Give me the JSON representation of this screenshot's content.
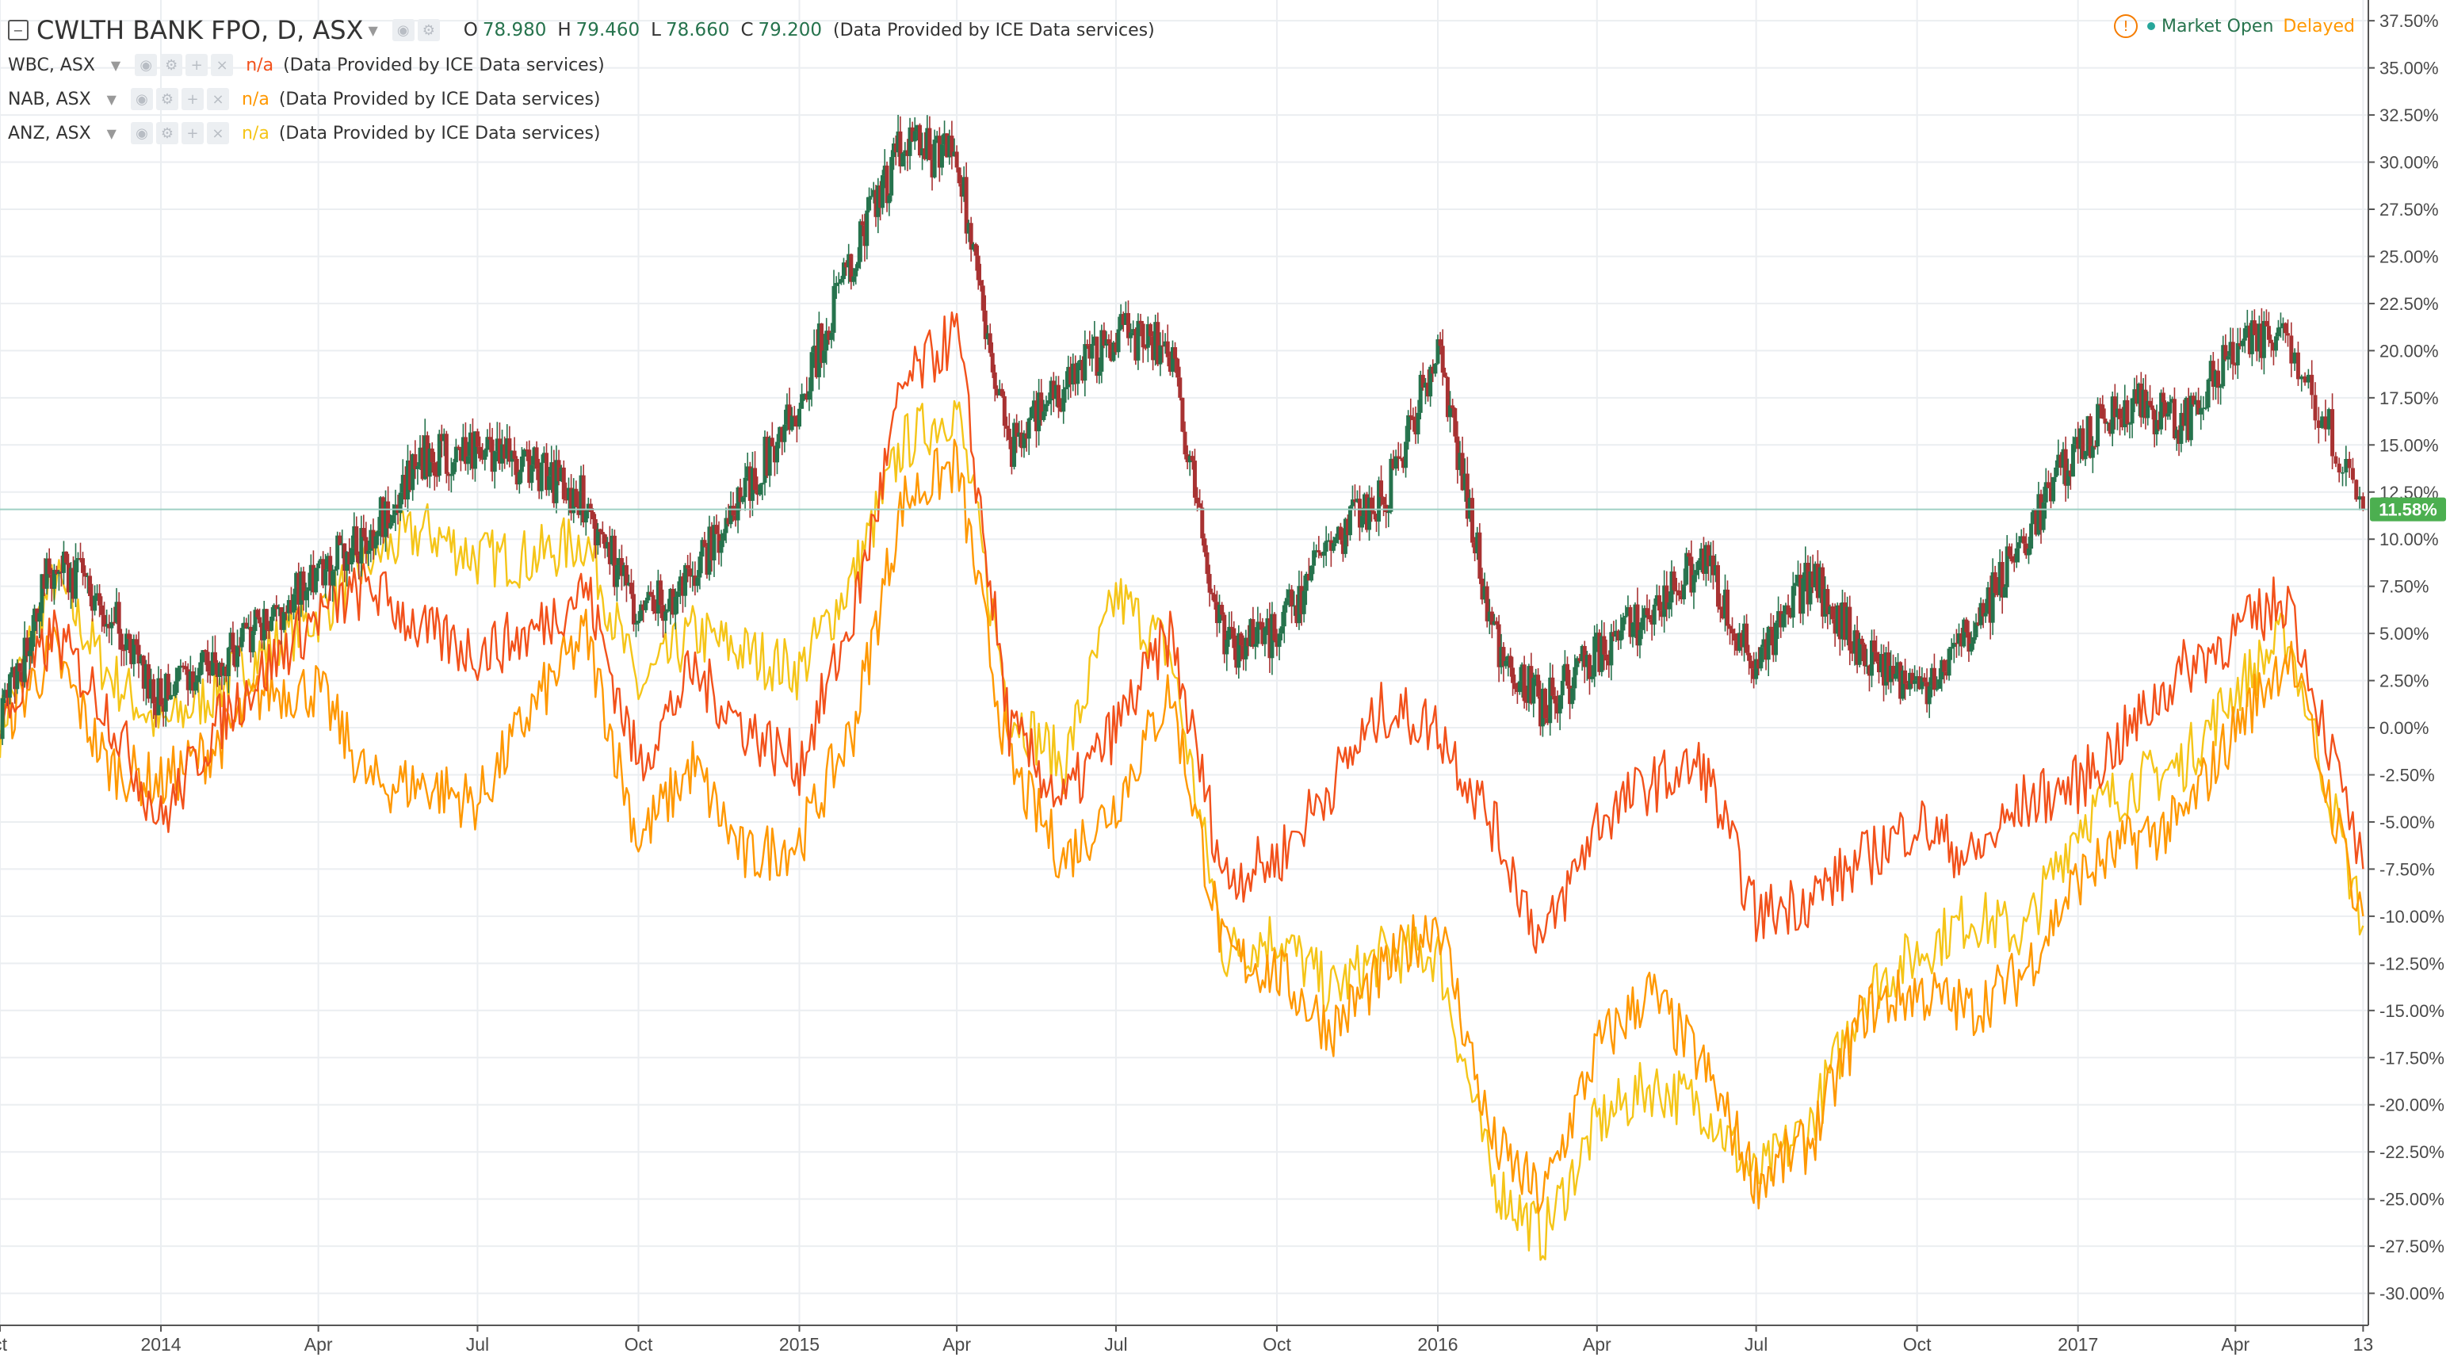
{
  "header": {
    "main_symbol": "CWLTH BANK FPO, D, ASX",
    "ohlc": {
      "o_label": "O",
      "o": "78.980",
      "h_label": "H",
      "h": "79.460",
      "l_label": "L",
      "l": "78.660",
      "c_label": "C",
      "c": "79.200"
    },
    "source_text": "(Data Provided by ICE Data services)",
    "compare": [
      {
        "symbol": "WBC, ASX",
        "value": "n/a",
        "color": "#f2511b",
        "source": "(Data Provided by ICE Data services)"
      },
      {
        "symbol": "NAB, ASX",
        "value": "n/a",
        "color": "#ff9800",
        "source": "(Data Provided by ICE Data services)"
      },
      {
        "symbol": "ANZ, ASX",
        "value": "n/a",
        "color": "#f5c518",
        "source": "(Data Provided by ICE Data services)"
      }
    ]
  },
  "status": {
    "market": "Market Open",
    "delay": "Delayed"
  },
  "colors": {
    "up": "#26734d",
    "down": "#a83232",
    "wbc": "#f2511b",
    "nab": "#ff9800",
    "anz": "#f5c518",
    "badge": "#4caf50",
    "grid": "#ebeef1"
  },
  "chart_data": {
    "type": "line",
    "candles_series": "CWLTH BANK FPO",
    "y_unit": "%",
    "ylim": [
      -31.7,
      38.6
    ],
    "y_ticks": [
      "37.50%",
      "35.00%",
      "32.50%",
      "30.00%",
      "27.50%",
      "25.00%",
      "22.50%",
      "20.00%",
      "17.50%",
      "15.00%",
      "12.50%",
      "10.00%",
      "7.50%",
      "5.00%",
      "2.50%",
      "0.00%",
      "-2.50%",
      "-5.00%",
      "-7.50%",
      "-10.00%",
      "-12.50%",
      "-15.00%",
      "-17.50%",
      "-20.00%",
      "-22.50%",
      "-25.00%",
      "-27.50%",
      "-30.00%"
    ],
    "x_ticks": [
      {
        "label": "ct",
        "date": "2013-10-01"
      },
      {
        "label": "2014",
        "date": "2014-01-01"
      },
      {
        "label": "Apr",
        "date": "2014-04-01"
      },
      {
        "label": "Jul",
        "date": "2014-07-01"
      },
      {
        "label": "Oct",
        "date": "2014-10-01"
      },
      {
        "label": "2015",
        "date": "2015-01-01"
      },
      {
        "label": "Apr",
        "date": "2015-04-01"
      },
      {
        "label": "Jul",
        "date": "2015-07-01"
      },
      {
        "label": "Oct",
        "date": "2015-10-01"
      },
      {
        "label": "2016",
        "date": "2016-01-01"
      },
      {
        "label": "Apr",
        "date": "2016-04-01"
      },
      {
        "label": "Jul",
        "date": "2016-07-01"
      },
      {
        "label": "Oct",
        "date": "2016-10-01"
      },
      {
        "label": "2017",
        "date": "2017-01-01"
      },
      {
        "label": "Apr",
        "date": "2017-04-01"
      },
      {
        "label": "13",
        "date": "2017-06-13"
      }
    ],
    "x_range": [
      "2013-10-01",
      "2017-06-16"
    ],
    "last_value_label": "11.58%",
    "last_value": 11.58,
    "dates": [
      "2013-10-01",
      "2013-11-01",
      "2013-12-01",
      "2014-01-01",
      "2014-02-01",
      "2014-03-01",
      "2014-04-01",
      "2014-05-01",
      "2014-06-01",
      "2014-07-01",
      "2014-08-01",
      "2014-09-01",
      "2014-10-01",
      "2014-11-01",
      "2014-12-01",
      "2015-01-01",
      "2015-02-01",
      "2015-03-01",
      "2015-04-01",
      "2015-05-01",
      "2015-06-01",
      "2015-07-01",
      "2015-08-01",
      "2015-09-01",
      "2015-10-01",
      "2015-11-01",
      "2015-12-01",
      "2016-01-01",
      "2016-02-01",
      "2016-03-01",
      "2016-04-01",
      "2016-05-01",
      "2016-06-01",
      "2016-07-01",
      "2016-08-01",
      "2016-09-01",
      "2016-10-01",
      "2016-11-01",
      "2016-12-01",
      "2017-01-01",
      "2017-02-01",
      "2017-03-01",
      "2017-04-01",
      "2017-05-01",
      "2017-06-13"
    ],
    "series": [
      {
        "name": "CWLTH BANK FPO",
        "style": "candles",
        "values": [
          0.0,
          9.0,
          6.5,
          1.5,
          3.5,
          5.5,
          8.0,
          10.5,
          14.5,
          14.5,
          14.0,
          12.0,
          6.0,
          8.0,
          12.5,
          17.5,
          25.0,
          31.0,
          30.0,
          15.0,
          18.0,
          21.0,
          20.0,
          4.0,
          5.0,
          10.0,
          12.0,
          20.0,
          5.0,
          1.0,
          4.0,
          6.0,
          9.0,
          3.0,
          8.0,
          4.0,
          2.0,
          5.0,
          10.0,
          15.0,
          17.5,
          16.0,
          20.0,
          21.0,
          11.58
        ]
      },
      {
        "name": "WBC, ASX",
        "style": "line",
        "values": [
          0.0,
          5.0,
          1.0,
          -5.0,
          0.0,
          3.0,
          6.0,
          7.5,
          5.0,
          4.0,
          5.0,
          7.5,
          -2.0,
          3.0,
          0.0,
          -2.0,
          6.0,
          18.0,
          21.0,
          0.0,
          -4.0,
          0.0,
          5.0,
          -8.0,
          -7.0,
          -3.0,
          1.0,
          0.0,
          -5.0,
          -11.5,
          -5.0,
          -3.0,
          -2.0,
          -10.0,
          -9.0,
          -7.0,
          -5.0,
          -7.0,
          -4.0,
          -3.0,
          0.0,
          3.0,
          5.0,
          7.0,
          -7.5
        ]
      },
      {
        "name": "NAB, ASX",
        "style": "line",
        "values": [
          0.0,
          4.0,
          -2.0,
          -3.0,
          -1.0,
          2.0,
          2.0,
          -3.0,
          -3.0,
          -4.0,
          1.0,
          5.0,
          -6.0,
          -2.0,
          -7.0,
          -6.0,
          0.0,
          12.0,
          14.0,
          -2.0,
          -7.0,
          -4.0,
          2.0,
          -12.0,
          -13.0,
          -16.0,
          -13.0,
          -10.0,
          -22.0,
          -25.0,
          -17.0,
          -14.0,
          -18.0,
          -24.0,
          -22.0,
          -15.0,
          -14.0,
          -15.0,
          -13.0,
          -8.0,
          -6.0,
          -5.0,
          0.0,
          4.0,
          -10.0
        ]
      },
      {
        "name": "ANZ, ASX",
        "style": "line",
        "values": [
          0.0,
          8.0,
          3.0,
          0.0,
          2.0,
          4.0,
          6.0,
          9.0,
          10.5,
          9.0,
          9.0,
          10.0,
          2.0,
          5.0,
          4.0,
          3.0,
          8.0,
          15.0,
          17.0,
          1.0,
          -2.0,
          7.0,
          4.0,
          -12.0,
          -11.0,
          -14.0,
          -12.0,
          -12.0,
          -24.0,
          -27.0,
          -21.0,
          -19.0,
          -20.0,
          -24.0,
          -21.0,
          -14.0,
          -12.0,
          -10.0,
          -11.0,
          -5.0,
          -3.0,
          -2.0,
          2.0,
          5.0,
          -10.5
        ]
      }
    ]
  }
}
